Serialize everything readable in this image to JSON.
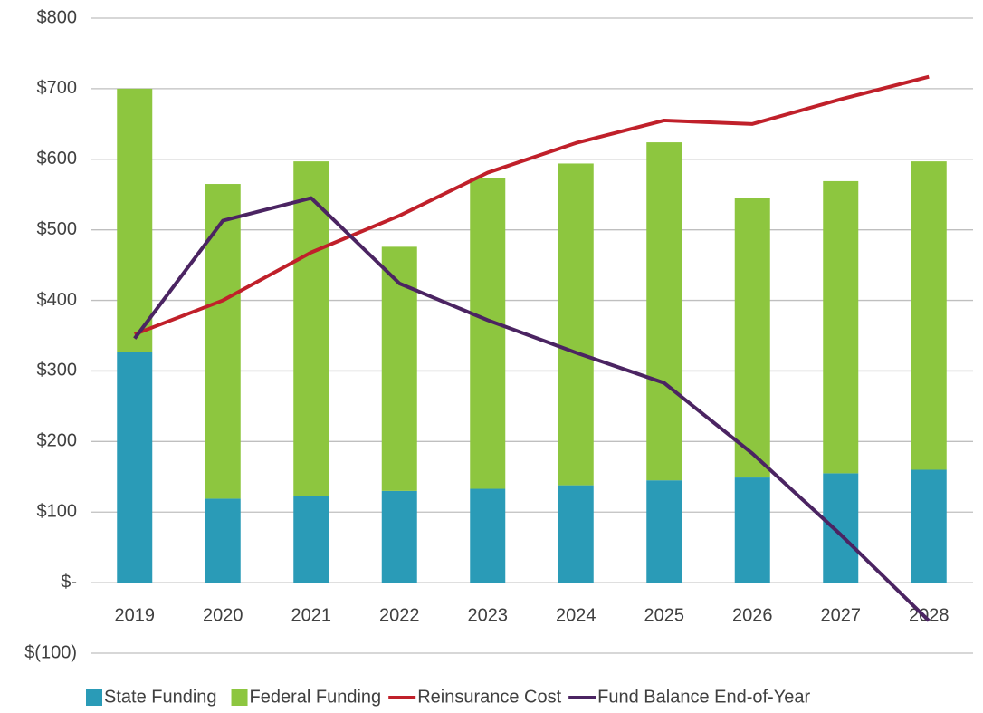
{
  "chart_data": {
    "type": "combo",
    "categories": [
      "2019",
      "2020",
      "2021",
      "2022",
      "2023",
      "2024",
      "2025",
      "2026",
      "2027",
      "2028"
    ],
    "series": [
      {
        "name": "State Funding",
        "type": "bar",
        "color": "#2a9bb7",
        "values": [
          327,
          119,
          123,
          130,
          133,
          138,
          145,
          149,
          155,
          160
        ]
      },
      {
        "name": "Federal Funding",
        "type": "bar",
        "color": "#8dc63f",
        "values": [
          373,
          446,
          474,
          346,
          440,
          456,
          479,
          396,
          414,
          437
        ]
      },
      {
        "name": "Reinsurance Cost",
        "type": "line",
        "color": "#c0202a",
        "values": [
          352,
          400,
          468,
          520,
          581,
          623,
          655,
          650,
          685,
          717
        ]
      },
      {
        "name": "Fund Balance End-of-Year",
        "type": "line",
        "color": "#4b2462",
        "values": [
          346,
          513,
          545,
          424,
          372,
          326,
          283,
          183,
          68,
          -54
        ]
      }
    ],
    "ylim": [
      -100,
      800
    ],
    "yticks": [
      {
        "value": -100,
        "label": "$(100)"
      },
      {
        "value": 0,
        "label": "$-"
      },
      {
        "value": 100,
        "label": "$100"
      },
      {
        "value": 200,
        "label": "$200"
      },
      {
        "value": 300,
        "label": "$300"
      },
      {
        "value": 400,
        "label": "$400"
      },
      {
        "value": 500,
        "label": "$500"
      },
      {
        "value": 600,
        "label": "$600"
      },
      {
        "value": 700,
        "label": "$700"
      },
      {
        "value": 800,
        "label": "$800"
      }
    ],
    "grid": true,
    "legend": "bottom"
  }
}
